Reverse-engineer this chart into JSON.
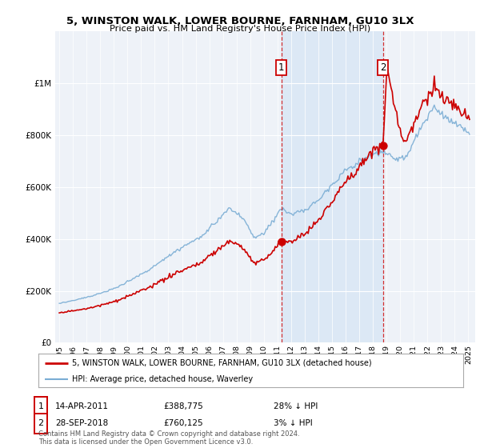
{
  "title": "5, WINSTON WALK, LOWER BOURNE, FARNHAM, GU10 3LX",
  "subtitle": "Price paid vs. HM Land Registry's House Price Index (HPI)",
  "legend_house": "5, WINSTON WALK, LOWER BOURNE, FARNHAM, GU10 3LX (detached house)",
  "legend_hpi": "HPI: Average price, detached house, Waverley",
  "footnote": "Contains HM Land Registry data © Crown copyright and database right 2024.\nThis data is licensed under the Open Government Licence v3.0.",
  "sale1_date": "14-APR-2011",
  "sale1_price": "£388,775",
  "sale1_hpi": "28% ↓ HPI",
  "sale2_date": "28-SEP-2018",
  "sale2_price": "£760,125",
  "sale2_hpi": "3% ↓ HPI",
  "sale1_year": 2011.29,
  "sale1_value": 388775,
  "sale2_year": 2018.74,
  "sale2_value": 760125,
  "house_color": "#cc0000",
  "hpi_color": "#7aadd4",
  "background_color": "#ffffff",
  "plot_bg_color": "#eef2f8",
  "shade_color": "#dce8f5",
  "ylim": [
    0,
    1200000
  ],
  "ytick_max": 1000000,
  "xlim_start": 1994.7,
  "xlim_end": 2025.5
}
